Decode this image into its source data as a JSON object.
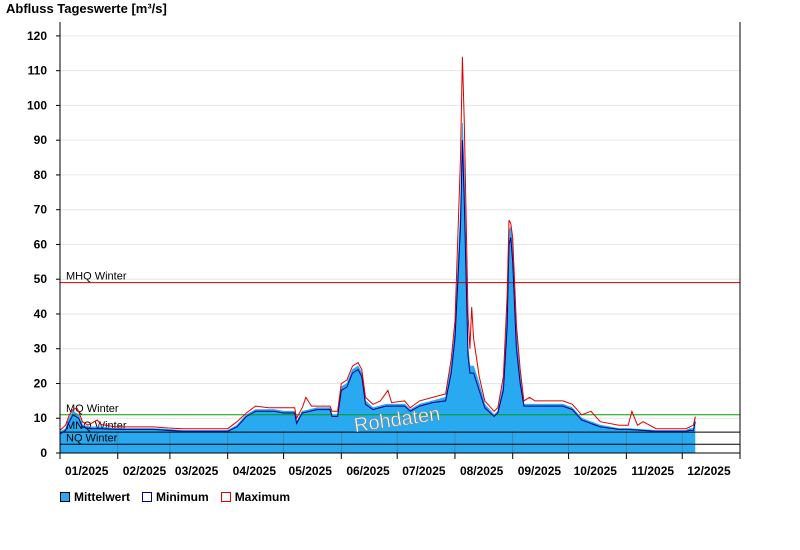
{
  "chart_data": {
    "type": "area",
    "title": "Abfluss Tageswerte [m³/s]",
    "ylim": [
      0,
      124
    ],
    "yticks": [
      0,
      10,
      20,
      30,
      40,
      50,
      60,
      70,
      80,
      90,
      100,
      110,
      120
    ],
    "xlim": [
      0,
      365
    ],
    "month_ticks": [
      0,
      31,
      59,
      90,
      120,
      151,
      181,
      212,
      243,
      273,
      304,
      334,
      365
    ],
    "xtick_labels": [
      "01/2025",
      "02/2025",
      "03/2025",
      "04/2025",
      "05/2025",
      "06/2025",
      "07/2025",
      "08/2025",
      "09/2025",
      "10/2025",
      "11/2025",
      "12/2025"
    ],
    "grid": true,
    "legend_position": "bottom-left",
    "watermark": "Rohdaten",
    "reference_lines": [
      {
        "name": "MHQ Winter",
        "value": 49,
        "color": "#cc0000"
      },
      {
        "name": "MQ Winter",
        "value": 11,
        "color": "#00a000"
      },
      {
        "name": "MNQ Winter",
        "value": 6,
        "color": "#000000"
      },
      {
        "name": "NQ Winter",
        "value": 2.5,
        "color": "#000000"
      }
    ],
    "series": [
      {
        "name": "Mittelwert",
        "color": "#29a9f0",
        "points": [
          [
            0,
            6
          ],
          [
            3,
            7
          ],
          [
            5,
            10
          ],
          [
            7,
            12
          ],
          [
            10,
            11
          ],
          [
            12,
            8
          ],
          [
            16,
            7.5
          ],
          [
            22,
            7.5
          ],
          [
            30,
            7
          ],
          [
            40,
            7
          ],
          [
            50,
            7
          ],
          [
            58,
            6.8
          ],
          [
            66,
            6.5
          ],
          [
            80,
            6.5
          ],
          [
            90,
            6.5
          ],
          [
            95,
            8
          ],
          [
            100,
            11
          ],
          [
            105,
            12.5
          ],
          [
            115,
            12.5
          ],
          [
            120,
            12
          ],
          [
            126,
            12
          ],
          [
            127,
            9
          ],
          [
            130,
            12
          ],
          [
            138,
            13
          ],
          [
            145,
            13
          ],
          [
            146,
            11
          ],
          [
            149,
            11
          ],
          [
            151,
            19
          ],
          [
            154,
            20
          ],
          [
            157,
            24
          ],
          [
            160,
            25
          ],
          [
            162,
            23
          ],
          [
            164,
            15
          ],
          [
            168,
            13
          ],
          [
            175,
            14
          ],
          [
            185,
            14
          ],
          [
            188,
            12.5
          ],
          [
            193,
            14
          ],
          [
            200,
            15
          ],
          [
            207,
            16
          ],
          [
            210,
            25
          ],
          [
            212,
            35
          ],
          [
            215,
            70
          ],
          [
            216,
            95
          ],
          [
            217,
            80
          ],
          [
            219,
            30
          ],
          [
            220,
            25
          ],
          [
            222,
            25
          ],
          [
            225,
            20
          ],
          [
            228,
            14
          ],
          [
            233,
            11
          ],
          [
            235,
            12
          ],
          [
            238,
            20
          ],
          [
            240,
            40
          ],
          [
            241,
            64
          ],
          [
            242,
            65
          ],
          [
            243,
            60
          ],
          [
            245,
            35
          ],
          [
            247,
            22
          ],
          [
            249,
            14
          ],
          [
            255,
            14
          ],
          [
            262,
            14
          ],
          [
            270,
            14
          ],
          [
            275,
            13
          ],
          [
            280,
            10
          ],
          [
            285,
            9
          ],
          [
            290,
            8
          ],
          [
            300,
            7
          ],
          [
            305,
            7
          ],
          [
            320,
            6.5
          ],
          [
            330,
            6.5
          ],
          [
            336,
            6.5
          ],
          [
            338,
            7
          ],
          [
            340,
            7
          ],
          [
            341,
            10
          ]
        ]
      },
      {
        "name": "Minimum",
        "color": "#00008b",
        "points": [
          [
            0,
            5.5
          ],
          [
            3,
            6.5
          ],
          [
            5,
            9
          ],
          [
            7,
            11
          ],
          [
            10,
            10
          ],
          [
            12,
            7.5
          ],
          [
            16,
            7
          ],
          [
            22,
            7
          ],
          [
            30,
            6.8
          ],
          [
            40,
            6.8
          ],
          [
            50,
            6.8
          ],
          [
            58,
            6.5
          ],
          [
            66,
            6.2
          ],
          [
            80,
            6.2
          ],
          [
            90,
            6.2
          ],
          [
            95,
            7.5
          ],
          [
            100,
            10.5
          ],
          [
            105,
            12
          ],
          [
            115,
            12
          ],
          [
            120,
            11.5
          ],
          [
            126,
            11.5
          ],
          [
            127,
            8.5
          ],
          [
            130,
            11.5
          ],
          [
            138,
            12.5
          ],
          [
            145,
            12.5
          ],
          [
            146,
            10.5
          ],
          [
            149,
            10.5
          ],
          [
            151,
            18
          ],
          [
            154,
            19
          ],
          [
            157,
            23
          ],
          [
            160,
            24
          ],
          [
            162,
            22
          ],
          [
            164,
            14
          ],
          [
            168,
            12.5
          ],
          [
            175,
            13.5
          ],
          [
            185,
            13.5
          ],
          [
            188,
            12
          ],
          [
            193,
            13.5
          ],
          [
            200,
            14.5
          ],
          [
            207,
            15
          ],
          [
            210,
            23
          ],
          [
            212,
            33
          ],
          [
            215,
            65
          ],
          [
            216,
            90
          ],
          [
            217,
            72
          ],
          [
            219,
            28
          ],
          [
            220,
            23
          ],
          [
            222,
            23
          ],
          [
            225,
            18
          ],
          [
            228,
            13
          ],
          [
            233,
            10.5
          ],
          [
            235,
            11.5
          ],
          [
            238,
            18
          ],
          [
            240,
            36
          ],
          [
            241,
            60
          ],
          [
            242,
            62
          ],
          [
            243,
            55
          ],
          [
            245,
            30
          ],
          [
            247,
            20
          ],
          [
            249,
            13.5
          ],
          [
            255,
            13.5
          ],
          [
            262,
            13.5
          ],
          [
            270,
            13.5
          ],
          [
            275,
            12.5
          ],
          [
            280,
            9.5
          ],
          [
            285,
            8.5
          ],
          [
            290,
            7.5
          ],
          [
            300,
            6.8
          ],
          [
            305,
            6.8
          ],
          [
            320,
            6.2
          ],
          [
            330,
            6.2
          ],
          [
            336,
            6.2
          ],
          [
            338,
            6.5
          ],
          [
            340,
            6.5
          ],
          [
            341,
            9
          ]
        ]
      },
      {
        "name": "Maximum",
        "color": "#e00000",
        "points": [
          [
            0,
            6.5
          ],
          [
            3,
            8
          ],
          [
            5,
            11
          ],
          [
            7,
            12.5
          ],
          [
            9,
            13
          ],
          [
            10,
            12
          ],
          [
            12,
            9
          ],
          [
            15,
            8
          ],
          [
            20,
            9.5
          ],
          [
            22,
            8.2
          ],
          [
            30,
            7.5
          ],
          [
            40,
            7.5
          ],
          [
            50,
            7.5
          ],
          [
            58,
            7.2
          ],
          [
            66,
            7
          ],
          [
            80,
            7
          ],
          [
            90,
            7
          ],
          [
            95,
            9
          ],
          [
            100,
            11.5
          ],
          [
            105,
            13.5
          ],
          [
            112,
            13
          ],
          [
            120,
            13
          ],
          [
            126,
            13
          ],
          [
            127,
            10
          ],
          [
            130,
            13
          ],
          [
            132,
            16
          ],
          [
            135,
            13.5
          ],
          [
            145,
            13.5
          ],
          [
            146,
            12
          ],
          [
            149,
            12
          ],
          [
            151,
            20
          ],
          [
            154,
            21
          ],
          [
            157,
            25
          ],
          [
            160,
            26
          ],
          [
            162,
            24
          ],
          [
            164,
            16
          ],
          [
            168,
            14
          ],
          [
            172,
            15
          ],
          [
            176,
            18
          ],
          [
            178,
            14.5
          ],
          [
            185,
            15
          ],
          [
            188,
            13
          ],
          [
            193,
            15
          ],
          [
            200,
            16
          ],
          [
            207,
            17
          ],
          [
            210,
            27
          ],
          [
            212,
            38
          ],
          [
            215,
            85
          ],
          [
            216,
            114
          ],
          [
            217,
            95
          ],
          [
            219,
            40
          ],
          [
            220,
            30
          ],
          [
            221,
            42
          ],
          [
            222,
            33
          ],
          [
            225,
            22
          ],
          [
            228,
            15
          ],
          [
            233,
            12
          ],
          [
            235,
            13
          ],
          [
            238,
            22
          ],
          [
            240,
            45
          ],
          [
            241,
            67
          ],
          [
            242,
            66
          ],
          [
            243,
            62
          ],
          [
            245,
            37
          ],
          [
            247,
            24
          ],
          [
            249,
            15
          ],
          [
            252,
            16
          ],
          [
            255,
            15
          ],
          [
            262,
            15
          ],
          [
            270,
            15
          ],
          [
            275,
            14
          ],
          [
            280,
            11
          ],
          [
            285,
            12
          ],
          [
            290,
            9
          ],
          [
            300,
            8
          ],
          [
            305,
            8
          ],
          [
            307,
            12
          ],
          [
            310,
            8
          ],
          [
            313,
            9
          ],
          [
            320,
            7
          ],
          [
            330,
            7
          ],
          [
            336,
            7
          ],
          [
            338,
            7.5
          ],
          [
            340,
            8
          ],
          [
            341,
            10.5
          ]
        ]
      }
    ]
  }
}
